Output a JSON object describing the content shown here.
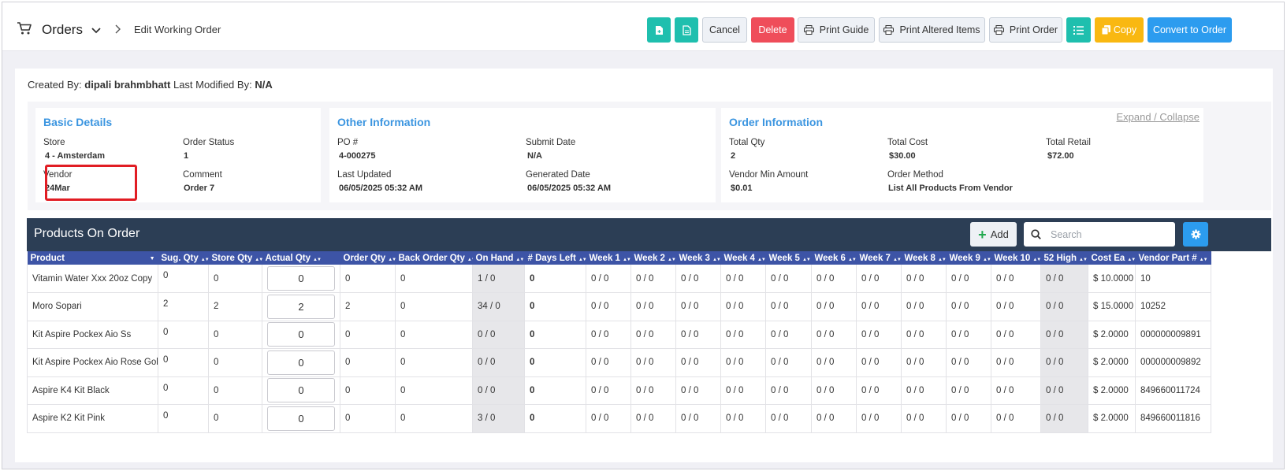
{
  "header": {
    "title": "Orders",
    "breadcrumb": "Edit Working Order",
    "buttons": {
      "cancel": "Cancel",
      "delete": "Delete",
      "print_guide": "Print Guide",
      "print_altered": "Print Altered Items",
      "print_order": "Print Order",
      "copy": "Copy",
      "convert": "Convert to Order"
    }
  },
  "meta": {
    "created_label": "Created By:",
    "created_by": "dipali brahmbhatt",
    "modified_label": "Last Modified By:",
    "modified_by": "N/A"
  },
  "basic_details": {
    "title": "Basic Details",
    "store_label": "Store",
    "store": "4 - Amsterdam",
    "status_label": "Order Status",
    "status": "1",
    "vendor_label": "Vendor",
    "vendor": "24Mar",
    "comment_label": "Comment",
    "comment": "Order 7"
  },
  "other_info": {
    "title": "Other Information",
    "po_label": "PO #",
    "po": "4-000275",
    "submit_label": "Submit Date",
    "submit": "N/A",
    "updated_label": "Last Updated",
    "updated": "06/05/2025 05:32 AM",
    "generated_label": "Generated Date",
    "generated": "06/05/2025 05:32 AM"
  },
  "order_info": {
    "title": "Order Information",
    "expand": "Expand / Collapse",
    "total_qty_label": "Total Qty",
    "total_qty": "2",
    "total_cost_label": "Total Cost",
    "total_cost": "$30.00",
    "total_retail_label": "Total Retail",
    "total_retail": "$72.00",
    "vendor_min_label": "Vendor Min Amount",
    "vendor_min": "$0.01",
    "method_label": "Order Method",
    "method": "List All Products From Vendor"
  },
  "grid": {
    "title": "Products On Order",
    "add": "Add",
    "search_placeholder": "Search",
    "columns": [
      "Product",
      "Sug. Qty",
      "Store Qty",
      "Actual Qty",
      "Order Qty",
      "Back Order Qty",
      "On Hand",
      "# Days Left",
      "Week 1",
      "Week 2",
      "Week 3",
      "Week 4",
      "Week 5",
      "Week 6",
      "Week 7",
      "Week 8",
      "Week 9",
      "Week 10",
      "52 High",
      "Cost Ea",
      "Vendor Part #"
    ],
    "rows": [
      {
        "name": "Vitamin Water Xxx 20oz Copy",
        "sug": "0",
        "store": "0",
        "actual": "0",
        "order": "0",
        "back": "0",
        "onhand": "1 / 0",
        "days": "0",
        "w1": "0 / 0",
        "w2": "0 / 0",
        "w3": "0 / 0",
        "w4": "0 / 0",
        "w5": "0 / 0",
        "w6": "0 / 0",
        "w7": "0 / 0",
        "w8": "0 / 0",
        "w9": "0 / 0",
        "w10": "0 / 0",
        "high": "0 / 0",
        "cost": "$ 10.0000",
        "part": "10"
      },
      {
        "name": "Moro Sopari",
        "sug": "2",
        "store": "2",
        "actual": "2",
        "order": "2",
        "back": "0",
        "onhand": "34 / 0",
        "days": "0",
        "w1": "0 / 0",
        "w2": "0 / 0",
        "w3": "0 / 0",
        "w4": "0 / 0",
        "w5": "0 / 0",
        "w6": "0 / 0",
        "w7": "0 / 0",
        "w8": "0 / 0",
        "w9": "0 / 0",
        "w10": "0 / 0",
        "high": "0 / 0",
        "cost": "$ 15.0000",
        "part": "10252"
      },
      {
        "name": "Kit Aspire Pockex Aio Ss",
        "sug": "0",
        "store": "0",
        "actual": "0",
        "order": "0",
        "back": "0",
        "onhand": "0 / 0",
        "days": "0",
        "w1": "0 / 0",
        "w2": "0 / 0",
        "w3": "0 / 0",
        "w4": "0 / 0",
        "w5": "0 / 0",
        "w6": "0 / 0",
        "w7": "0 / 0",
        "w8": "0 / 0",
        "w9": "0 / 0",
        "w10": "0 / 0",
        "high": "0 / 0",
        "cost": "$ 2.0000",
        "part": "000000009891"
      },
      {
        "name": "Kit Aspire Pockex Aio Rose Gold",
        "sug": "0",
        "store": "0",
        "actual": "0",
        "order": "0",
        "back": "0",
        "onhand": "0 / 0",
        "days": "0",
        "w1": "0 / 0",
        "w2": "0 / 0",
        "w3": "0 / 0",
        "w4": "0 / 0",
        "w5": "0 / 0",
        "w6": "0 / 0",
        "w7": "0 / 0",
        "w8": "0 / 0",
        "w9": "0 / 0",
        "w10": "0 / 0",
        "high": "0 / 0",
        "cost": "$ 2.0000",
        "part": "000000009892"
      },
      {
        "name": "Aspire K4 Kit Black",
        "sug": "0",
        "store": "0",
        "actual": "0",
        "order": "0",
        "back": "0",
        "onhand": "0 / 0",
        "days": "0",
        "w1": "0 / 0",
        "w2": "0 / 0",
        "w3": "0 / 0",
        "w4": "0 / 0",
        "w5": "0 / 0",
        "w6": "0 / 0",
        "w7": "0 / 0",
        "w8": "0 / 0",
        "w9": "0 / 0",
        "w10": "0 / 0",
        "high": "0 / 0",
        "cost": "$ 2.0000",
        "part": "849660011724"
      },
      {
        "name": "Aspire K2 Kit Pink",
        "sug": "0",
        "store": "0",
        "actual": "0",
        "order": "0",
        "back": "0",
        "onhand": "3 / 0",
        "days": "0",
        "w1": "0 / 0",
        "w2": "0 / 0",
        "w3": "0 / 0",
        "w4": "0 / 0",
        "w5": "0 / 0",
        "w6": "0 / 0",
        "w7": "0 / 0",
        "w8": "0 / 0",
        "w9": "0 / 0",
        "w10": "0 / 0",
        "high": "0 / 0",
        "cost": "$ 2.0000",
        "part": "849660011816"
      }
    ]
  }
}
